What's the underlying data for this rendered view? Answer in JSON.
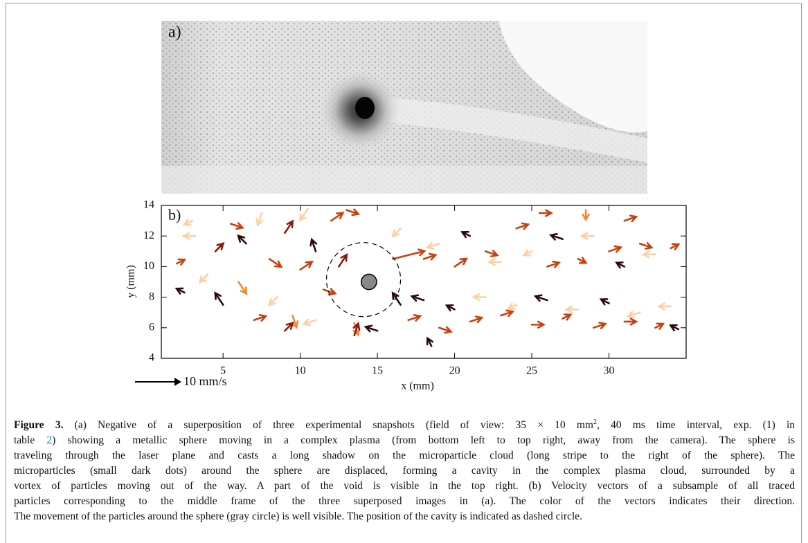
{
  "figure": {
    "panel_a_label": "a)",
    "caption": {
      "label": "Figure 3.",
      "line1": [
        "(a) Negative of a superposition of three experimental snapshots (field of view: 35 × 10 mm",
        "2",
        ", 40 ms time interval, exp. (1) in"
      ],
      "line2": [
        "table ",
        "2",
        ") showing a metallic sphere moving in a complex plasma (from bottom left to top right, away from the camera). The sphere is"
      ],
      "lines": [
        "traveling through the laser plane and casts a long shadow on the microparticle cloud (long stripe to the right of the sphere). The",
        "microparticles (small dark dots) around the sphere are displaced, forming a cavity in the complex plasma cloud, surrounded by a",
        "vortex of particles moving out of the way. A part of the void is visible in the top right. (b) Velocity vectors of a subsample of all traced",
        "particles corresponding to the middle frame of the three superposed images in (a). The color of the vectors indicates their direction.",
        "The movement of the particles around the sphere (gray circle) is well visible. The position of the cavity is indicated as dashed circle."
      ]
    }
  },
  "chart_data": {
    "type": "quiver",
    "panel_label": "b)",
    "xlabel": "x (mm)",
    "ylabel": "y (mm)",
    "xlim": [
      1,
      35
    ],
    "ylim": [
      4,
      14
    ],
    "xticks": [
      5,
      10,
      15,
      20,
      25,
      30
    ],
    "yticks": [
      4,
      6,
      8,
      10,
      12,
      14
    ],
    "scale": {
      "value": 10,
      "label": "10 mm/s"
    },
    "colormap": [
      "#fdd0a2",
      "#f5892f",
      "#c9400f",
      "#8a1a0a",
      "#2a0a0a"
    ],
    "sphere": {
      "x": 14.45,
      "y": 9.0,
      "r": 0.5,
      "color": "#888888"
    },
    "cavity": {
      "x": 14.1,
      "y": 9.15,
      "r": 2.4
    },
    "vectors": {
      "x": [
        2,
        2.5,
        3,
        3.2,
        4,
        4.5,
        5,
        5.5,
        6,
        6.5,
        7,
        7.5,
        8,
        8.5,
        9,
        9.5,
        10,
        10.5,
        11,
        11.5,
        12,
        11,
        12.5,
        9,
        13,
        16.5,
        16.5,
        13.5,
        15,
        16,
        13.5,
        18,
        19,
        20,
        21,
        22,
        23,
        24,
        25,
        26,
        27,
        28,
        29,
        30,
        31,
        32,
        33,
        34,
        28.5,
        25.5,
        31,
        17,
        18,
        19,
        20,
        21,
        22,
        23,
        24,
        25,
        26,
        27,
        28,
        29,
        30,
        31,
        32,
        33,
        34,
        34.5,
        18.5
      ],
      "y": [
        10.2,
        8.3,
        13,
        12,
        9.5,
        11,
        7.5,
        12.8,
        9,
        11.5,
        6.5,
        13.5,
        10.5,
        8,
        12.2,
        6.8,
        9.8,
        13.8,
        11,
        8.5,
        13,
        6.5,
        10,
        5.8,
        13.7,
        12.5,
        7.5,
        6.3,
        5.8,
        10.5,
        5.5,
        10.5,
        11.5,
        10,
        12,
        11,
        10.3,
        12.5,
        11,
        10,
        11.8,
        10.5,
        12,
        11,
        10,
        11.5,
        10.8,
        11.2,
        13.7,
        13.5,
        13,
        6.5,
        7.8,
        6,
        7.2,
        6.4,
        8,
        6.8,
        7.5,
        6.2,
        7.8,
        6.6,
        7.2,
        6,
        7.6,
        6.4,
        7,
        6,
        7.4,
        5.9,
        4.8
      ],
      "u": [
        2,
        -2,
        -2,
        -3,
        -2,
        2,
        -2,
        3,
        2,
        -2,
        3,
        -1,
        3,
        -2,
        2,
        1,
        3,
        -2,
        -1,
        3,
        3,
        -3,
        2,
        2,
        3,
        -2,
        -2,
        1,
        -3,
        8,
        1,
        3,
        -3,
        3,
        -2,
        3,
        -3,
        3,
        -2,
        3,
        -3,
        2,
        -3,
        3,
        -2,
        3,
        -3,
        2,
        0,
        3,
        3,
        3,
        -3,
        3,
        -2,
        3,
        -3,
        3,
        -2,
        3,
        -3,
        2,
        -3,
        3,
        -2,
        3,
        -3,
        2,
        -3,
        -2,
        -1
      ],
      "v": [
        1,
        1,
        -1,
        0,
        -2,
        2,
        3,
        -1,
        -3,
        2,
        1,
        -3,
        -2,
        -2,
        3,
        -3,
        2,
        -3,
        3,
        -1,
        2,
        -1,
        3,
        2,
        -1,
        -2,
        3,
        -3,
        1,
        2,
        3,
        1,
        -1,
        2,
        1,
        -1,
        0,
        1,
        -1,
        1,
        1,
        -1,
        0,
        1,
        1,
        -1,
        0,
        1,
        -2.5,
        0,
        1,
        1,
        1,
        -1,
        1,
        1,
        0,
        1,
        -1,
        0,
        1,
        1,
        0,
        1,
        1,
        0,
        -1,
        1,
        0,
        1,
        2
      ]
    }
  }
}
